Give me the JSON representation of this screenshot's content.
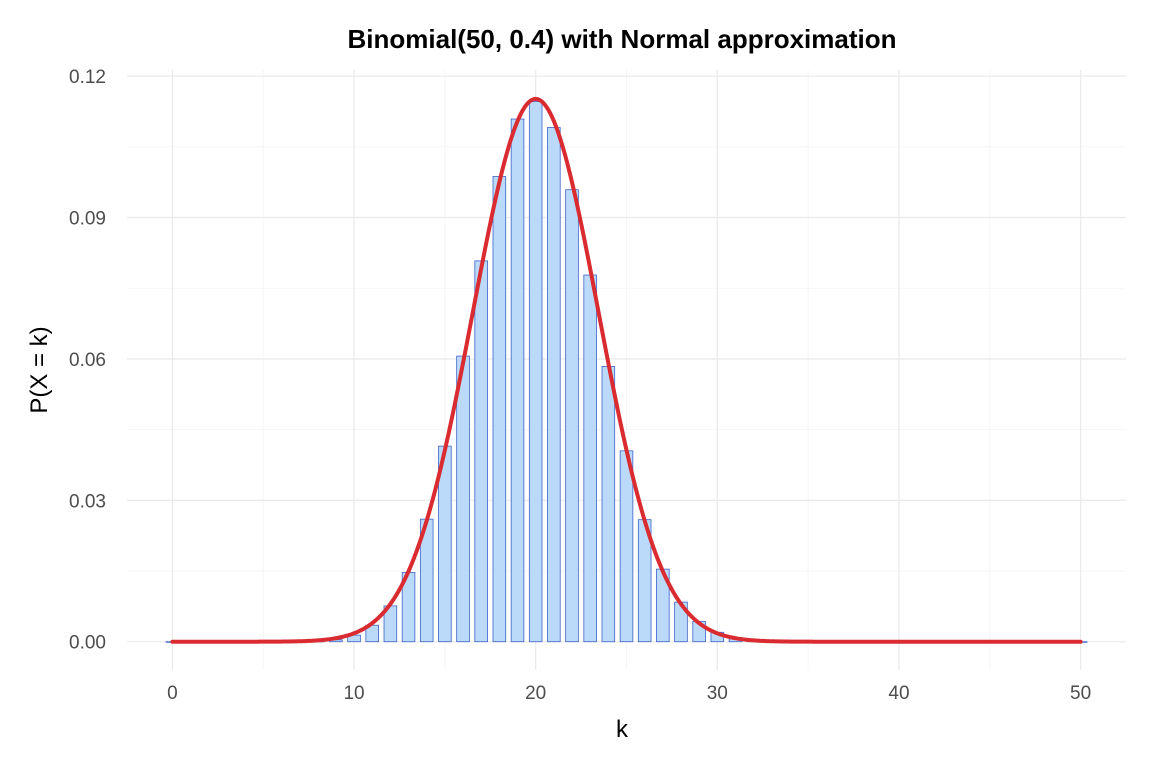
{
  "chart_data": {
    "type": "bar",
    "title": "Binomial(50, 0.4) with Normal approximation",
    "xlabel": "k",
    "ylabel": "P(X = k)",
    "xlim": [
      -2.5,
      52.5
    ],
    "ylim": [
      -0.006,
      0.1213
    ],
    "x_ticks": [
      0,
      10,
      20,
      30,
      40,
      50
    ],
    "x_tick_labels": [
      "0",
      "10",
      "20",
      "30",
      "40",
      "50"
    ],
    "y_ticks": [
      0,
      0.03,
      0.06,
      0.09,
      0.12
    ],
    "y_tick_labels": [
      "0.00",
      "0.03",
      "0.06",
      "0.09",
      "0.12"
    ],
    "grid": true,
    "legend": "none",
    "x": [
      0,
      1,
      2,
      3,
      4,
      5,
      6,
      7,
      8,
      9,
      10,
      11,
      12,
      13,
      14,
      15,
      16,
      17,
      18,
      19,
      20,
      21,
      22,
      23,
      24,
      25,
      26,
      27,
      28,
      29,
      30,
      31,
      32,
      33,
      34,
      35,
      36,
      37,
      38,
      39,
      40,
      41,
      42,
      43,
      44,
      45,
      46,
      47,
      48,
      49,
      50
    ],
    "series": [
      {
        "type": "bar",
        "values": [
          0.0,
          0.0,
          0.0,
          0.0,
          0.0,
          0.0,
          0.0,
          0.0,
          0.0001,
          0.0004,
          0.0014,
          0.0035,
          0.0076,
          0.0147,
          0.026,
          0.0415,
          0.0606,
          0.0808,
          0.0987,
          0.1109,
          0.1146,
          0.1091,
          0.0959,
          0.0778,
          0.0584,
          0.0405,
          0.0259,
          0.0154,
          0.0084,
          0.0043,
          0.002,
          0.0009,
          0.0003,
          0.0001,
          0.0,
          0.0,
          0.0,
          0.0,
          0.0,
          0.0,
          0.0,
          0.0,
          0.0,
          0.0,
          0.0,
          0.0,
          0.0,
          0.0,
          0.0,
          0.0,
          0.0
        ]
      },
      {
        "type": "line",
        "mean": 20,
        "sd": 3.4641
      }
    ],
    "colors": {
      "bar_fill": "#BBDAF9",
      "bar_stroke": "#3E63C9",
      "curve": "#D92B30",
      "grid_major": "#EBEBEB",
      "grid_minor": "#F3F3F3",
      "tick_text": "#4D4D4D"
    }
  }
}
